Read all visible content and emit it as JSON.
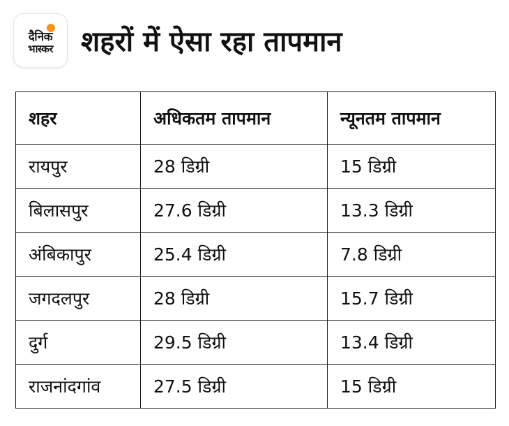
{
  "logo": {
    "line1": "दैनिक",
    "line2": "भास्कर",
    "accent_color": "#f7941d"
  },
  "title": "शहरों में ऐसा रहा तापमान",
  "table": {
    "headers": [
      "शहर",
      "अधिकतम तापमान",
      "न्यूनतम तापमान"
    ],
    "rows": [
      [
        "रायपुर",
        "28 डिग्री",
        "15 डिग्री"
      ],
      [
        "बिलासपुर",
        "27.6 डिग्री",
        "13.3 डिग्री"
      ],
      [
        "अंबिकापुर",
        "25.4 डिग्री",
        "7.8 डिग्री"
      ],
      [
        "जगदलपुर",
        "28 डिग्री",
        "15.7 डिग्री"
      ],
      [
        "दुर्ग",
        "29.5 डिग्री",
        "13.4 डिग्री"
      ],
      [
        "राजनांदगांव",
        "27.5 डिग्री",
        "15 डिग्री"
      ]
    ]
  }
}
